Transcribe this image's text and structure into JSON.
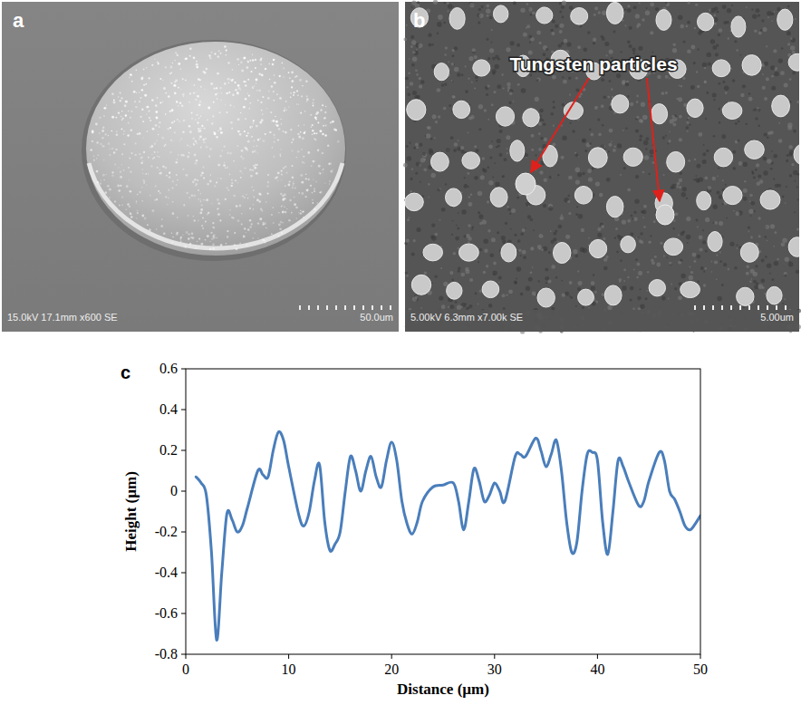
{
  "images": [
    {
      "label": "a",
      "caption": "15.0kV 17.1mm x600 SE",
      "scale_bar": "50.0um"
    },
    {
      "label": "b",
      "caption": "5.00kV 6.3mm x7.00k SE",
      "scale_bar": "5.00um",
      "annotation": "Tungsten particles"
    }
  ],
  "chart_label": "c",
  "chart_data": {
    "type": "line",
    "x_label": "Distance (µm)",
    "y_label": "Height (µm)",
    "x": [
      1,
      1.5,
      2,
      2.5,
      3,
      3.5,
      4,
      4.5,
      5,
      5.5,
      6,
      7,
      7.5,
      8,
      8.5,
      9,
      9.5,
      10,
      11,
      11.5,
      12,
      12.5,
      13,
      13.5,
      14,
      14.5,
      15,
      15.5,
      16,
      16.5,
      17,
      17.5,
      18,
      18.5,
      19,
      19.5,
      20,
      20.5,
      21,
      21.5,
      22,
      22.5,
      23,
      24,
      25,
      26,
      26.5,
      27,
      27.5,
      28,
      28.5,
      29,
      29.5,
      30,
      30.5,
      31,
      32,
      32.5,
      33,
      34,
      34.5,
      35,
      35.5,
      36,
      36.5,
      37,
      37.5,
      38,
      38.5,
      39,
      39.5,
      40,
      40.5,
      41,
      41.5,
      42,
      42.5,
      43,
      44,
      44.5,
      45,
      46,
      46.5,
      47,
      47.5,
      48,
      48.5,
      49,
      49.5,
      50
    ],
    "values": [
      0.07,
      0.04,
      -0.02,
      -0.3,
      -0.73,
      -0.4,
      -0.11,
      -0.14,
      -0.2,
      -0.17,
      -0.08,
      0.1,
      0.08,
      0.07,
      0.2,
      0.29,
      0.25,
      0.12,
      -0.12,
      -0.17,
      -0.1,
      0.05,
      0.13,
      -0.15,
      -0.29,
      -0.26,
      -0.2,
      0.0,
      0.17,
      0.1,
      0.0,
      0.1,
      0.17,
      0.07,
      0.02,
      0.15,
      0.24,
      0.15,
      -0.05,
      -0.16,
      -0.21,
      -0.15,
      -0.05,
      0.02,
      0.03,
      0.04,
      -0.05,
      -0.19,
      -0.05,
      0.11,
      0.05,
      -0.05,
      -0.02,
      0.04,
      0.0,
      -0.05,
      0.17,
      0.18,
      0.17,
      0.26,
      0.2,
      0.12,
      0.18,
      0.25,
      0.1,
      -0.15,
      -0.3,
      -0.25,
      0.0,
      0.18,
      0.19,
      0.15,
      -0.15,
      -0.31,
      -0.1,
      0.15,
      0.12,
      0.05,
      -0.07,
      -0.05,
      0.05,
      0.19,
      0.15,
      0.0,
      -0.04,
      -0.1,
      -0.17,
      -0.19,
      -0.16,
      -0.12
    ],
    "color": "#4a7ebb",
    "xlim": [
      0,
      50
    ],
    "ylim": [
      -0.8,
      0.6
    ],
    "xticks": [
      0,
      10,
      20,
      30,
      40,
      50
    ],
    "yticks": [
      -0.8,
      -0.6,
      -0.4,
      -0.2,
      0,
      0.2,
      0.4,
      0.6
    ],
    "grid": false
  }
}
